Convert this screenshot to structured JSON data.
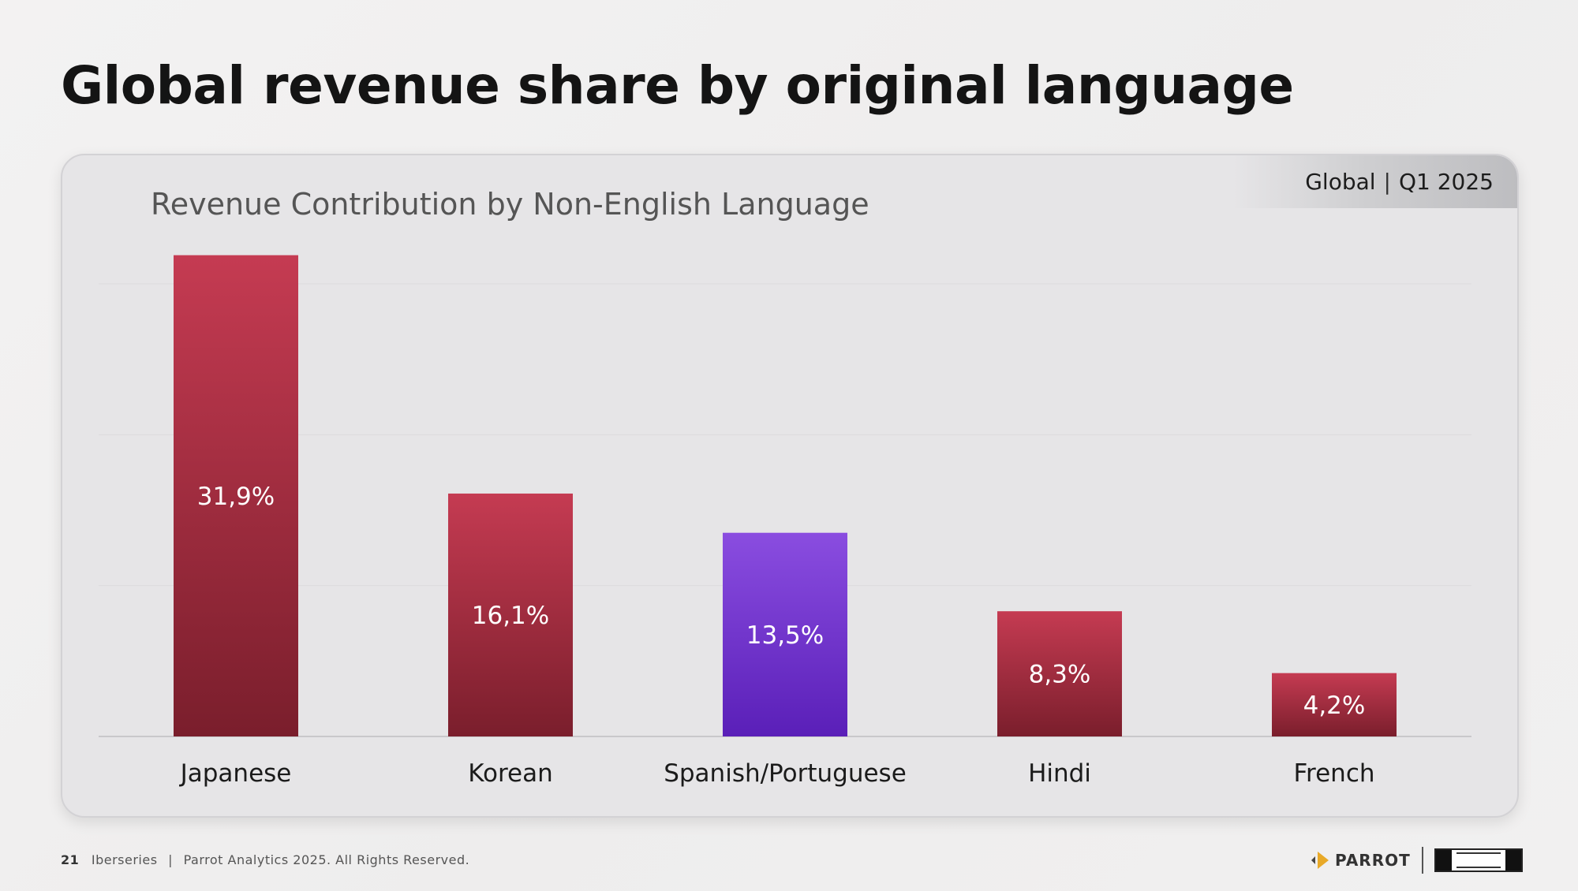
{
  "slide": {
    "title": "Global revenue share by original language"
  },
  "scope": {
    "region": "Global",
    "period": "Q1 2025"
  },
  "footer": {
    "page_number": "21",
    "event": "Iberseries",
    "copyright": "Parrot Analytics 2025. All Rights Reserved."
  },
  "logos": {
    "parrot": "PARROT"
  },
  "colors": {
    "red_bar": "#c53b52",
    "red_bar_dark": "#7a1e2c",
    "purple_bar": "#8a4de0",
    "purple_bar_dark": "#5a1fb8"
  },
  "chart_data": {
    "type": "bar",
    "title": "Revenue Contribution by Non-English Language",
    "categories": [
      "Japanese",
      "Korean",
      "Spanish/Portuguese",
      "Hindi",
      "French"
    ],
    "values": [
      31.9,
      16.1,
      13.5,
      8.3,
      4.2
    ],
    "value_labels": [
      "31,9%",
      "16,1%",
      "13,5%",
      "8,3%",
      "4,2%"
    ],
    "highlight_index": 2,
    "ylim": [
      0,
      30
    ],
    "grid": true,
    "xlabel": "",
    "ylabel": ""
  }
}
